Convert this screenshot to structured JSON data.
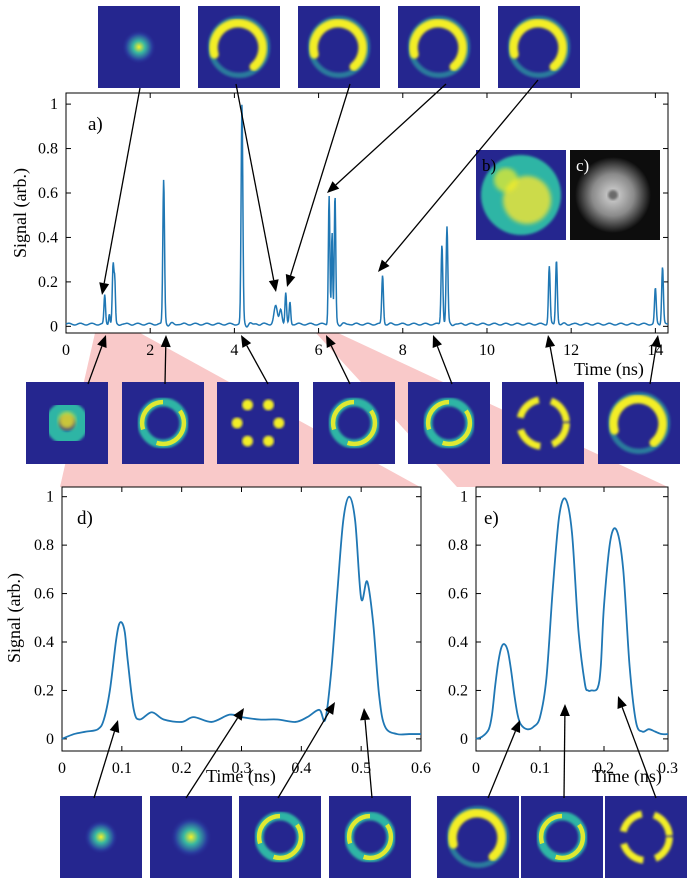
{
  "figure": {
    "panels": {
      "a": {
        "label": "a)",
        "xlabel": "Time (ns)",
        "ylabel": "Signal (arb.)",
        "xticks": [
          "0",
          "2",
          "4",
          "6",
          "8",
          "10",
          "12",
          "14"
        ],
        "yticks": [
          "0",
          "0.2",
          "0.4",
          "0.6",
          "0.8",
          "1"
        ]
      },
      "b": {
        "label": "b)"
      },
      "c": {
        "label": "c)"
      },
      "d": {
        "label": "d)",
        "xlabel": "Time (ns)",
        "ylabel": "Signal (arb.)",
        "xticks": [
          "0",
          "0.1",
          "0.2",
          "0.3",
          "0.4",
          "0.5",
          "0.6"
        ],
        "yticks": [
          "0",
          "0.2",
          "0.4",
          "0.6",
          "0.8",
          "1"
        ]
      },
      "e": {
        "label": "e)",
        "xlabel": "Time (ns)",
        "xticks": [
          "0",
          "0.1",
          "0.2",
          "0.3"
        ],
        "yticks": [
          "0",
          "0.2",
          "0.4",
          "0.6",
          "0.8",
          "1"
        ]
      }
    },
    "colors": {
      "line": "#1f77b4",
      "zoom_band": "#f9c9c9",
      "inset_bg": "#25268f",
      "mode_bright": "#f3ee26",
      "mode_mid": "#2fb5a5",
      "grey_bg": "#0d0d0d"
    },
    "thumbnails": {
      "top": [
        "bright-spot",
        "crescent",
        "crescent",
        "crescent",
        "crescent"
      ],
      "middle": [
        "donut",
        "ring",
        "petals",
        "ring",
        "ring",
        "broken-ring",
        "crescent"
      ],
      "bottom_d": [
        "small-spot",
        "spot",
        "ring",
        "ring"
      ],
      "bottom_e": [
        "crescent",
        "ring",
        "broken-ring"
      ]
    }
  },
  "chart_data": [
    {
      "panel": "a",
      "type": "line",
      "xlabel": "Time (ns)",
      "ylabel": "Signal (arb.)",
      "xlim": [
        0,
        14.3
      ],
      "ylim": [
        -0.03,
        1.05
      ],
      "grid": false,
      "baseline": 0.01,
      "peaks": [
        {
          "x": 0.92,
          "y": 0.13,
          "w": 0.018
        },
        {
          "x": 1.03,
          "y": 0.05,
          "w": 0.015
        },
        {
          "x": 1.12,
          "y": 0.27,
          "w": 0.02
        },
        {
          "x": 1.16,
          "y": 0.17,
          "w": 0.015
        },
        {
          "x": 2.32,
          "y": 0.65,
          "w": 0.02
        },
        {
          "x": 4.18,
          "y": 0.99,
          "w": 0.02
        },
        {
          "x": 4.98,
          "y": 0.08,
          "w": 0.04
        },
        {
          "x": 5.1,
          "y": 0.07,
          "w": 0.03
        },
        {
          "x": 5.22,
          "y": 0.14,
          "w": 0.018
        },
        {
          "x": 5.32,
          "y": 0.1,
          "w": 0.018
        },
        {
          "x": 6.25,
          "y": 0.58,
          "w": 0.018
        },
        {
          "x": 6.32,
          "y": 0.41,
          "w": 0.015
        },
        {
          "x": 6.39,
          "y": 0.58,
          "w": 0.018
        },
        {
          "x": 7.52,
          "y": 0.22,
          "w": 0.02
        },
        {
          "x": 8.93,
          "y": 0.36,
          "w": 0.02
        },
        {
          "x": 9.05,
          "y": 0.44,
          "w": 0.02
        },
        {
          "x": 11.48,
          "y": 0.26,
          "w": 0.02
        },
        {
          "x": 11.65,
          "y": 0.29,
          "w": 0.02
        },
        {
          "x": 14.0,
          "y": 0.16,
          "w": 0.02
        },
        {
          "x": 14.17,
          "y": 0.26,
          "w": 0.02
        }
      ]
    },
    {
      "panel": "d",
      "type": "line",
      "xlabel": "Time (ns)",
      "ylabel": "Signal (arb.)",
      "xlim": [
        0,
        0.6
      ],
      "ylim": [
        -0.05,
        1.04
      ],
      "grid": false,
      "x": [
        0,
        0.02,
        0.04,
        0.06,
        0.07,
        0.08,
        0.09,
        0.095,
        0.1,
        0.105,
        0.11,
        0.12,
        0.13,
        0.15,
        0.17,
        0.2,
        0.22,
        0.25,
        0.28,
        0.3,
        0.33,
        0.36,
        0.39,
        0.41,
        0.43,
        0.44,
        0.45,
        0.46,
        0.47,
        0.48,
        0.49,
        0.5,
        0.51,
        0.52,
        0.53,
        0.54,
        0.56,
        0.58,
        0.6
      ],
      "y": [
        0.0,
        0.02,
        0.03,
        0.04,
        0.08,
        0.2,
        0.4,
        0.47,
        0.48,
        0.44,
        0.32,
        0.12,
        0.08,
        0.11,
        0.08,
        0.07,
        0.09,
        0.07,
        0.1,
        0.09,
        0.08,
        0.08,
        0.07,
        0.09,
        0.12,
        0.08,
        0.28,
        0.6,
        0.9,
        1.0,
        0.9,
        0.58,
        0.65,
        0.48,
        0.18,
        0.05,
        0.02,
        0.02,
        0.02
      ]
    },
    {
      "panel": "e",
      "type": "line",
      "xlabel": "Time (ns)",
      "xlim": [
        0,
        0.3
      ],
      "ylim": [
        -0.05,
        1.04
      ],
      "grid": false,
      "x": [
        0,
        0.01,
        0.02,
        0.025,
        0.03,
        0.035,
        0.04,
        0.045,
        0.05,
        0.055,
        0.06,
        0.065,
        0.07,
        0.08,
        0.09,
        0.1,
        0.11,
        0.12,
        0.13,
        0.14,
        0.15,
        0.16,
        0.17,
        0.175,
        0.18,
        0.19,
        0.195,
        0.2,
        0.21,
        0.22,
        0.23,
        0.24,
        0.25,
        0.26,
        0.27,
        0.28,
        0.29,
        0.3
      ],
      "y": [
        0.0,
        0.01,
        0.04,
        0.1,
        0.22,
        0.32,
        0.38,
        0.39,
        0.36,
        0.28,
        0.18,
        0.1,
        0.06,
        0.04,
        0.05,
        0.09,
        0.25,
        0.62,
        0.92,
        0.99,
        0.85,
        0.45,
        0.23,
        0.2,
        0.2,
        0.21,
        0.3,
        0.55,
        0.82,
        0.86,
        0.7,
        0.3,
        0.07,
        0.03,
        0.04,
        0.03,
        0.02,
        0.02
      ]
    }
  ]
}
